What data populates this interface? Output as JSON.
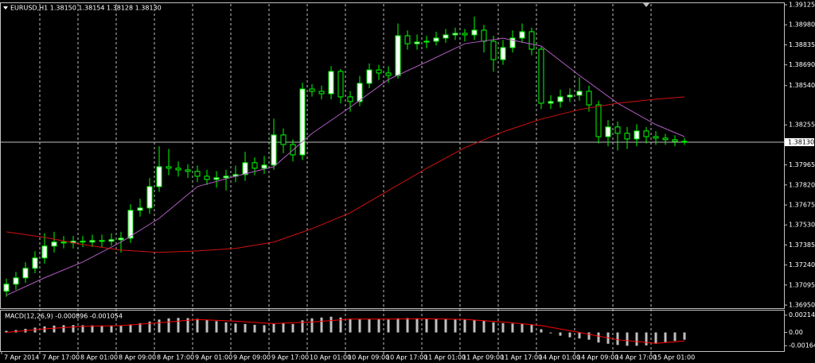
{
  "chart_data": [
    {
      "type": "candlestick",
      "title": "EURUSD,H1  1.38150 1.38154 1.38128 1.38130",
      "categories": [
        "7 Apr 2014",
        null,
        null,
        null,
        "7 Apr 17:00",
        null,
        null,
        null,
        "8 Apr 01:00",
        null,
        null,
        null,
        "8 Apr 09:00",
        null,
        null,
        null,
        "8 Apr 17:00",
        null,
        null,
        null,
        "9 Apr 01:00",
        null,
        null,
        null,
        "9 Apr 09:00",
        null,
        null,
        null,
        "9 Apr 17:00",
        null,
        null,
        null,
        "10 Apr 01:00",
        null,
        null,
        null,
        "10 Apr 09:00",
        null,
        null,
        null,
        "10 Apr 17:00",
        null,
        null,
        null,
        "11 Apr 01:00",
        null,
        null,
        null,
        "11 Apr 09:00",
        null,
        null,
        null,
        "11 Apr 17:00",
        null,
        null,
        null,
        "14 Apr 01:00",
        null,
        null,
        null,
        "14 Apr 09:00",
        null,
        null,
        null,
        "14 Apr 17:00",
        null,
        null,
        null,
        "15 Apr 01:00",
        null,
        null,
        null
      ],
      "open": [
        1.3705,
        1.37101,
        1.37147,
        1.37216,
        1.37291,
        1.37377,
        1.37406,
        1.374,
        1.37412,
        1.37406,
        1.37417,
        1.37412,
        1.37423,
        1.37434,
        1.37636,
        1.37653,
        1.37808,
        1.37952,
        1.37941,
        1.37929,
        1.37918,
        1.37883,
        1.3786,
        1.37872,
        1.37883,
        1.37895,
        1.37981,
        1.37941,
        1.37964,
        1.38182,
        1.38113,
        1.38038,
        1.38515,
        1.38498,
        1.38481,
        1.38642,
        1.38458,
        1.38424,
        1.38556,
        1.38653,
        1.38631,
        1.38613,
        1.38901,
        1.38843,
        1.38855,
        1.38861,
        1.38884,
        1.38907,
        1.38918,
        1.38907,
        1.38941,
        1.38861,
        1.38728,
        1.38815,
        1.38884,
        1.3893,
        1.38803,
        1.38412,
        1.38424,
        1.38458,
        1.3847,
        1.38498,
        1.384,
        1.3817,
        1.3824,
        1.38194,
        1.38153,
        1.38211,
        1.3817,
        1.38159,
        1.38148,
        1.38136
      ],
      "high": [
        1.37141,
        1.3719,
        1.3726,
        1.3734,
        1.3747,
        1.3748,
        1.3745,
        1.3745,
        1.3745,
        1.3746,
        1.3746,
        1.3747,
        1.3748,
        1.3768,
        1.3772,
        1.3787,
        1.381,
        1.3808,
        1.3799,
        1.3797,
        1.3796,
        1.3793,
        1.3792,
        1.3793,
        1.3796,
        1.3806,
        1.3802,
        1.3803,
        1.383,
        1.3823,
        1.3815,
        1.3856,
        1.3855,
        1.3854,
        1.3868,
        1.3866,
        1.385,
        1.3861,
        1.387,
        1.3869,
        1.3868,
        1.3899,
        1.3894,
        1.3891,
        1.389,
        1.3893,
        1.3895,
        1.3896,
        1.3895,
        1.3904,
        1.3898,
        1.389,
        1.3887,
        1.3894,
        1.3899,
        1.3896,
        1.3882,
        1.3847,
        1.3851,
        1.3852,
        1.386,
        1.3854,
        1.3843,
        1.3829,
        1.3828,
        1.3824,
        1.3826,
        1.3824,
        1.3821,
        1.3819,
        1.3818,
        1.3816
      ],
      "low": [
        1.3701,
        1.3706,
        1.3711,
        1.3718,
        1.3725,
        1.3733,
        1.3736,
        1.3736,
        1.3737,
        1.3737,
        1.3737,
        1.3738,
        1.3733,
        1.374,
        1.3759,
        1.3761,
        1.3777,
        1.3789,
        1.3788,
        1.3787,
        1.3784,
        1.3782,
        1.378,
        1.3778,
        1.3784,
        1.3785,
        1.3789,
        1.379,
        1.3793,
        1.3805,
        1.3799,
        1.38,
        1.3846,
        1.3844,
        1.3844,
        1.3841,
        1.3835,
        1.3839,
        1.3852,
        1.3858,
        1.3856,
        1.3859,
        1.388,
        1.388,
        1.3881,
        1.3883,
        1.3885,
        1.3887,
        1.3886,
        1.3887,
        1.3878,
        1.3864,
        1.3869,
        1.3878,
        1.3885,
        1.3876,
        1.3837,
        1.3837,
        1.3838,
        1.3842,
        1.3843,
        1.3835,
        1.3812,
        1.381,
        1.3807,
        1.3808,
        1.381,
        1.3812,
        1.3811,
        1.3811,
        1.381,
        1.3811
      ],
      "close": [
        1.37101,
        1.37147,
        1.37216,
        1.37291,
        1.37377,
        1.37406,
        1.374,
        1.37412,
        1.37406,
        1.37417,
        1.37412,
        1.37423,
        1.37434,
        1.37636,
        1.37653,
        1.37808,
        1.37952,
        1.37941,
        1.37929,
        1.37918,
        1.37883,
        1.3786,
        1.37872,
        1.37883,
        1.37895,
        1.37981,
        1.37941,
        1.37964,
        1.38182,
        1.38113,
        1.38038,
        1.38515,
        1.38498,
        1.38481,
        1.38642,
        1.38458,
        1.38424,
        1.38556,
        1.38653,
        1.38631,
        1.38613,
        1.38901,
        1.38843,
        1.38855,
        1.38861,
        1.38884,
        1.38907,
        1.38918,
        1.38907,
        1.38941,
        1.38861,
        1.38728,
        1.38815,
        1.38884,
        1.3893,
        1.38803,
        1.38412,
        1.38424,
        1.38458,
        1.3847,
        1.38498,
        1.384,
        1.3817,
        1.3824,
        1.38194,
        1.38153,
        1.38211,
        1.3817,
        1.38159,
        1.38148,
        1.38136,
        1.3813
      ],
      "up_color": "#ffffff",
      "down_color": "#000000",
      "wick_color": "#00ff00",
      "overlays": [
        {
          "color": "#b05cc0",
          "x": [
            0,
            4,
            8,
            12,
            16,
            20,
            24,
            28,
            32,
            36,
            40,
            44,
            48,
            52,
            56,
            60,
            64,
            68,
            71
          ],
          "values": [
            1.3702,
            1.37147,
            1.37262,
            1.37406,
            1.37578,
            1.37808,
            1.37883,
            1.37952,
            1.38193,
            1.38383,
            1.38584,
            1.38711,
            1.38843,
            1.38883,
            1.38826,
            1.38613,
            1.38412,
            1.38257,
            1.3817
          ]
        },
        {
          "color": "#d01010",
          "x": [
            0,
            4,
            8,
            12,
            16,
            20,
            24,
            28,
            32,
            36,
            40,
            44,
            48,
            52,
            56,
            60,
            64,
            68,
            71
          ],
          "values": [
            1.3748,
            1.3744,
            1.37388,
            1.37348,
            1.37331,
            1.37342,
            1.3736,
            1.37406,
            1.37503,
            1.37618,
            1.37779,
            1.3794,
            1.3809,
            1.38205,
            1.38297,
            1.38366,
            1.38412,
            1.38441,
            1.38458
          ]
        }
      ],
      "ylim": [
        1.36927,
        1.39131
      ],
      "yticks": [
        {
          "value": 1.39125,
          "label": "1.39125"
        },
        {
          "value": 1.3898,
          "label": "1.38980"
        },
        {
          "value": 1.38835,
          "label": "1.38835"
        },
        {
          "value": 1.3869,
          "label": "1.38690"
        },
        {
          "value": 1.3854,
          "label": "1.38540"
        },
        {
          "value": 1.38255,
          "label": "1.38255"
        },
        {
          "value": 1.37965,
          "label": "1.37965"
        },
        {
          "value": 1.3782,
          "label": "1.37820"
        },
        {
          "value": 1.37675,
          "label": "1.37675"
        },
        {
          "value": 1.3753,
          "label": "1.37530"
        },
        {
          "value": 1.37385,
          "label": "1.37385"
        },
        {
          "value": 1.3724,
          "label": "1.37240"
        },
        {
          "value": 1.37095,
          "label": "1.37095"
        },
        {
          "value": 1.3695,
          "label": "1.36950"
        }
      ],
      "last_price": {
        "value": 1.3813,
        "label": "1.38130"
      },
      "grid": true
    },
    {
      "type": "macd",
      "title": "MACD(12,26,9) -0.000896 -0.001054",
      "histogram": {
        "color": "#c0c0c0",
        "values": [
          0.0002,
          0.0003,
          0.00045,
          0.0006,
          0.00075,
          0.00085,
          0.0009,
          0.00092,
          0.0009,
          0.00088,
          0.00086,
          0.00085,
          0.00083,
          0.001,
          0.00115,
          0.00135,
          0.0016,
          0.00175,
          0.0018,
          0.00178,
          0.0017,
          0.00155,
          0.0014,
          0.00125,
          0.0011,
          0.00105,
          0.00095,
          0.0009,
          0.0011,
          0.00115,
          0.00105,
          0.0015,
          0.00175,
          0.00185,
          0.00195,
          0.00185,
          0.0017,
          0.00165,
          0.00168,
          0.00165,
          0.0016,
          0.00175,
          0.00178,
          0.00175,
          0.0017,
          0.00168,
          0.00165,
          0.00162,
          0.00158,
          0.00155,
          0.00145,
          0.00125,
          0.00115,
          0.0011,
          0.00108,
          0.00095,
          0.0004,
          -0.0001,
          -0.0004,
          -0.0006,
          -0.00075,
          -0.0009,
          -0.00125,
          -0.0014,
          -0.00155,
          -0.00165,
          -0.00165,
          -0.0016,
          -0.0014,
          -0.0012,
          -0.00105,
          -0.000896
        ]
      },
      "signal": {
        "color": "#ff0000",
        "x": [
          0,
          4,
          8,
          12,
          16,
          20,
          24,
          28,
          32,
          36,
          40,
          44,
          48,
          52,
          56,
          60,
          64,
          68,
          71
        ],
        "values": [
          0,
          0.00045,
          0.00075,
          0.00085,
          0.0012,
          0.0016,
          0.0014,
          0.0011,
          0.0013,
          0.00165,
          0.00165,
          0.0017,
          0.00162,
          0.0013,
          0.00085,
          0,
          -0.0009,
          -0.00135,
          -0.001054
        ]
      },
      "ylim": [
        -0.00221,
        0.00271
      ],
      "yticks": [
        {
          "value": 0.002147,
          "label": "0.002147"
        },
        {
          "value": 0,
          "label": "0.00"
        },
        {
          "value": -0.001644,
          "label": "-0.001644"
        }
      ]
    }
  ]
}
